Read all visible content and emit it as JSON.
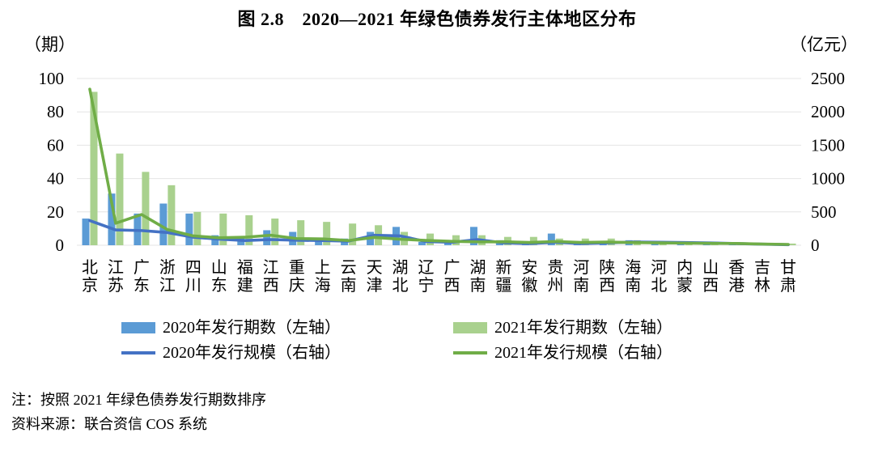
{
  "title": "图 2.8　2020—2021 年绿色债券发行主体地区分布",
  "left_axis": {
    "unit": "（期）",
    "ticks": [
      0,
      20,
      40,
      60,
      80,
      100
    ]
  },
  "right_axis": {
    "unit": "（亿元）",
    "ticks": [
      0,
      500,
      1000,
      1500,
      2000,
      2500
    ]
  },
  "legend": [
    {
      "label": "2020年发行期数（左轴）",
      "type": "bar",
      "color": "#5B9BD5"
    },
    {
      "label": "2021年发行期数（左轴）",
      "type": "bar",
      "color": "#A9D18E"
    },
    {
      "label": "2020年发行规模（右轴）",
      "type": "line",
      "color": "#4472C4"
    },
    {
      "label": "2021年发行规模（右轴）",
      "type": "line",
      "color": "#70AD47"
    }
  ],
  "notes": {
    "sort_note": "注：按照 2021 年绿色债券发行期数排序",
    "source_note": "资料来源：联合资信 COS 系统"
  },
  "chart_data": {
    "type": "bar",
    "subtype": "combo-bar-line-dual-axis",
    "title": "图 2.8　2020—2021 年绿色债券发行主体地区分布",
    "categories": [
      "北京",
      "江苏",
      "广东",
      "浙江",
      "四川",
      "山东",
      "福建",
      "江西",
      "重庆",
      "上海",
      "云南",
      "天津",
      "湖北",
      "辽宁",
      "广西",
      "湖南",
      "新疆",
      "安徽",
      "贵州",
      "河南",
      "陕西",
      "海南",
      "河北",
      "内蒙",
      "山西",
      "香港",
      "吉林",
      "甘肃"
    ],
    "series": [
      {
        "name": "2020年发行期数（左轴）",
        "type": "bar",
        "axis": "left",
        "color": "#5B9BD5",
        "values": [
          16,
          31,
          19,
          25,
          19,
          6,
          5,
          9,
          8,
          3,
          4,
          8,
          11,
          2,
          3,
          11,
          3,
          2,
          7,
          1,
          2,
          3,
          2,
          1,
          1,
          1,
          1,
          1
        ]
      },
      {
        "name": "2021年发行期数（左轴）",
        "type": "bar",
        "axis": "left",
        "color": "#A9D18E",
        "values": [
          92,
          55,
          44,
          36,
          20,
          19,
          18,
          16,
          15,
          14,
          13,
          12,
          8,
          7,
          6,
          6,
          5,
          5,
          4,
          4,
          4,
          3,
          2,
          2,
          2,
          1,
          1,
          1
        ]
      },
      {
        "name": "2020年发行规模（右轴）",
        "type": "line",
        "axis": "right",
        "color": "#4472C4",
        "values": [
          370,
          230,
          220,
          190,
          120,
          92,
          70,
          85,
          75,
          70,
          62,
          150,
          140,
          55,
          45,
          85,
          35,
          25,
          45,
          25,
          35,
          48,
          45,
          40,
          34,
          25,
          16,
          8
        ]
      },
      {
        "name": "2021年发行规模（右轴）",
        "type": "line",
        "axis": "right",
        "color": "#70AD47",
        "values": [
          2340,
          330,
          460,
          235,
          140,
          112,
          120,
          150,
          100,
          95,
          70,
          118,
          90,
          72,
          58,
          50,
          52,
          42,
          56,
          42,
          48,
          40,
          36,
          32,
          28,
          26,
          18,
          12
        ]
      }
    ],
    "left_ylabel": "（期）",
    "right_ylabel": "（亿元）",
    "left_ylim": [
      0,
      100
    ],
    "right_ylim": [
      0,
      2500
    ],
    "grid": true,
    "legend_position": "bottom"
  }
}
